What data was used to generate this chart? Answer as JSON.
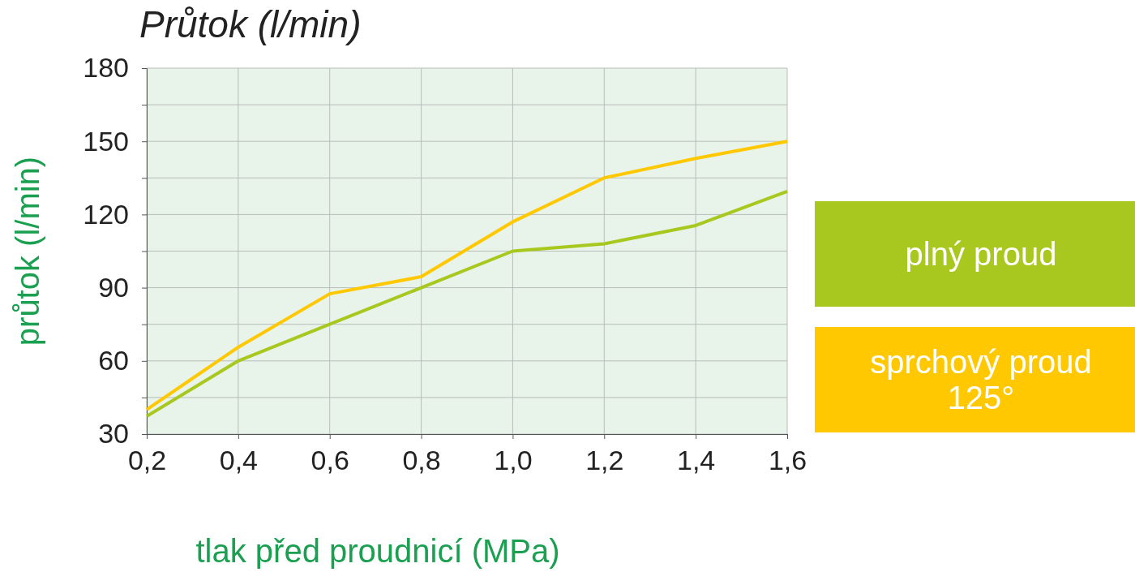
{
  "chart_data": {
    "type": "line",
    "title": "Průtok (l/min)",
    "xlabel": "tlak před proudnicí (MPa)",
    "ylabel": "průtok (l/min)",
    "x": [
      0.2,
      0.4,
      0.6,
      0.8,
      1.0,
      1.2,
      1.4,
      1.6
    ],
    "series": [
      {
        "name": "plný proud",
        "color": "#a8c820",
        "values": [
          37.3,
          60,
          75,
          90,
          105,
          108,
          115.5,
          129.5
        ]
      },
      {
        "name": "sprchový proud 125°",
        "color": "#ffc800",
        "values": [
          40,
          65.6,
          87.5,
          94.5,
          117,
          135,
          143,
          150
        ]
      }
    ],
    "xlim": [
      0.2,
      1.6
    ],
    "ylim": [
      30,
      180
    ],
    "xticks": [
      {
        "value": 0.2,
        "label": "0,2"
      },
      {
        "value": 0.4,
        "label": "0,4"
      },
      {
        "value": 0.6,
        "label": "0,6"
      },
      {
        "value": 0.8,
        "label": "0,8"
      },
      {
        "value": 1.0,
        "label": "1,0"
      },
      {
        "value": 1.2,
        "label": "1,2"
      },
      {
        "value": 1.4,
        "label": "1,4"
      },
      {
        "value": 1.6,
        "label": "1,6"
      }
    ],
    "yticks": [
      30,
      {
        "value": 45,
        "label": null
      },
      60,
      {
        "value": 75,
        "label": null
      },
      90,
      {
        "value": 105,
        "label": null
      },
      120,
      {
        "value": 135,
        "label": null
      },
      150,
      {
        "value": 165,
        "label": null
      },
      180
    ],
    "grid": true,
    "legend": "right",
    "marker": "none",
    "line_style": "solid"
  }
}
